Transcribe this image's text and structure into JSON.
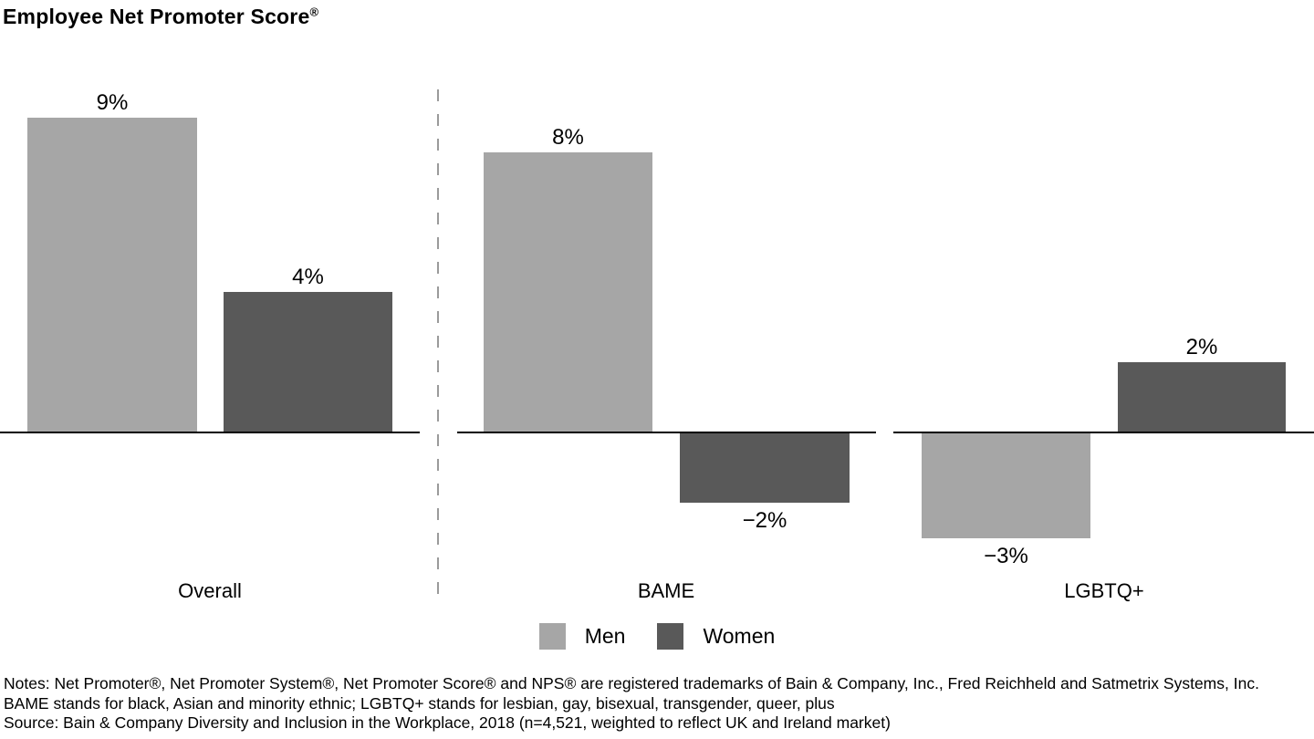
{
  "title": {
    "text": "Employee Net Promoter Score",
    "registered_mark": "®"
  },
  "chart_data": {
    "type": "bar",
    "title": "Employee Net Promoter Score®",
    "categories": [
      "Overall",
      "BAME",
      "LGBTQ+"
    ],
    "series": [
      {
        "name": "Men",
        "color": "#a6a6a6",
        "values": [
          9,
          8,
          -3
        ],
        "labels": [
          "9%",
          "8%",
          "−3%"
        ]
      },
      {
        "name": "Women",
        "color": "#595959",
        "values": [
          4,
          -2,
          2
        ],
        "labels": [
          "4%",
          "−2%",
          "2%"
        ]
      }
    ],
    "value_unit": "%",
    "baseline": 0,
    "ylim": [
      -4,
      10
    ],
    "grid": false,
    "legend_position": "bottom-center",
    "panel_divider_after": "Overall"
  },
  "notes_lines": [
    "Notes: Net Promoter®, Net Promoter System®, Net Promoter Score® and NPS® are registered trademarks of Bain & Company, Inc., Fred Reichheld and Satmetrix Systems, Inc.",
    "BAME stands for black, Asian and minority ethnic; LGBTQ+ stands for lesbian, gay, bisexual, transgender, queer, plus",
    "Source: Bain & Company Diversity and Inclusion in the Workplace, 2018 (n=4,521, weighted to reflect UK and Ireland market)"
  ],
  "colors": {
    "axis": "#000000",
    "divider": "#9a9a9a",
    "text": "#000000",
    "background": "#ffffff"
  }
}
